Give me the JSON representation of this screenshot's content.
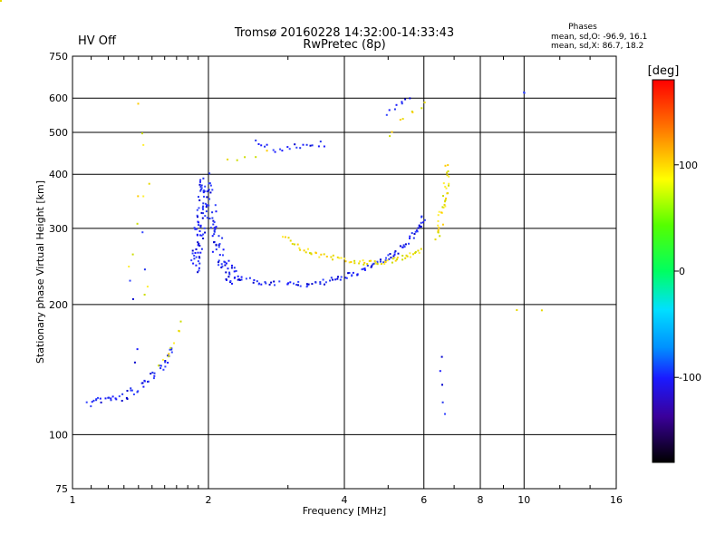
{
  "chart_data": {
    "type": "scatter",
    "title": "Tromsø 20160228 14:32:00-14:33:43",
    "subtitle": "RwPretec (8p)",
    "status_label": "HV Off",
    "status_color": "#cc0000",
    "xlabel": "Frequency [MHz]",
    "ylabel": "Stationary phase Virtual Height [km]",
    "x_scale": "log",
    "y_scale": "log",
    "xlim": [
      1,
      16
    ],
    "ylim": [
      75,
      750
    ],
    "x_ticks": [
      1,
      2,
      4,
      6,
      8,
      10,
      16
    ],
    "x_tick_labels": [
      "1",
      "2",
      "4",
      "6",
      "8",
      "10",
      "16"
    ],
    "y_ticks": [
      75,
      100,
      200,
      300,
      400,
      500,
      600,
      750
    ],
    "y_tick_labels": [
      "75",
      "100",
      "200",
      "300",
      "400",
      "500",
      "600",
      "750"
    ],
    "grid": true,
    "phases": {
      "title": "Phases",
      "o_line": "mean, sd,O: -96.9, 16.1",
      "x_line": "mean, sd,X:  86.7, 18.2"
    },
    "colorbar": {
      "label": "[deg]",
      "range": [
        -180,
        180
      ],
      "ticks": [
        100,
        0,
        -100
      ],
      "tick_labels": [
        "100",
        "0",
        "-100"
      ]
    },
    "series": [
      {
        "name": "O",
        "phase": -96.9,
        "color": "#1a1aff",
        "segments": [
          {
            "x": [
              1.08,
              1.2,
              1.32,
              1.45,
              1.58,
              1.68
            ],
            "y": [
              118,
              120,
              124,
              132,
              143,
              158
            ],
            "n": 55,
            "jit": 0.05
          },
          {
            "x": [
              1.86,
              1.9,
              1.94,
              1.98,
              2.04,
              2.15,
              2.3
            ],
            "y": [
              240,
              280,
              330,
              390,
              300,
              250,
              230
            ],
            "n": 150,
            "jit": 0.09
          },
          {
            "x": [
              2.3,
              2.6,
              3.0,
              3.4,
              3.8,
              4.2,
              4.6,
              5.0,
              5.4,
              5.8,
              6.0
            ],
            "y": [
              230,
              225,
              222,
              223,
              228,
              236,
              245,
              256,
              272,
              295,
              320
            ],
            "n": 110,
            "jit": 0.03
          },
          {
            "x": [
              2.5,
              2.8,
              3.2,
              3.6
            ],
            "y": [
              485,
              455,
              465,
              470
            ],
            "n": 22,
            "jit": 0.03
          },
          {
            "x": [
              5.0,
              5.3,
              5.6
            ],
            "y": [
              550,
              570,
              600
            ],
            "n": 8,
            "jit": 0.04
          },
          {
            "x": [
              6.5,
              6.6
            ],
            "y": [
              150,
              110
            ],
            "n": 5,
            "jit": 0.05
          },
          {
            "x": [
              1.4,
              1.4
            ],
            "y": [
              140,
              300
            ],
            "n": 6,
            "jit": 0.15
          },
          {
            "x": [
              10.0,
              10.0
            ],
            "y": [
              625,
              615
            ],
            "n": 3,
            "jit": 0.01
          }
        ]
      },
      {
        "name": "X",
        "phase": 86.7,
        "color": "#e6d800",
        "segments": [
          {
            "x": [
              1.55,
              1.65,
              1.75
            ],
            "y": [
              140,
              155,
              185
            ],
            "n": 10,
            "jit": 0.05
          },
          {
            "x": [
              2.9,
              3.2,
              3.5,
              3.9,
              4.3,
              4.7,
              5.1,
              5.5,
              5.9
            ],
            "y": [
              290,
              270,
              260,
              255,
              250,
              250,
              252,
              258,
              268
            ],
            "n": 70,
            "jit": 0.025
          },
          {
            "x": [
              6.4,
              6.55,
              6.7,
              6.8
            ],
            "y": [
              290,
              320,
              360,
              420
            ],
            "n": 35,
            "jit": 0.06
          },
          {
            "x": [
              5.0,
              5.5,
              6.0
            ],
            "y": [
              500,
              540,
              600
            ],
            "n": 8,
            "jit": 0.05
          },
          {
            "x": [
              1.4,
              1.4
            ],
            "y": [
              200,
              550
            ],
            "n": 12,
            "jit": 0.2
          },
          {
            "x": [
              2.2,
              2.4,
              2.7
            ],
            "y": [
              430,
              440,
              450
            ],
            "n": 5,
            "jit": 0.03
          },
          {
            "x": [
              8.5,
              11.0
            ],
            "y": [
              195,
              195
            ],
            "n": 3,
            "jit": 0.02
          }
        ]
      }
    ]
  }
}
